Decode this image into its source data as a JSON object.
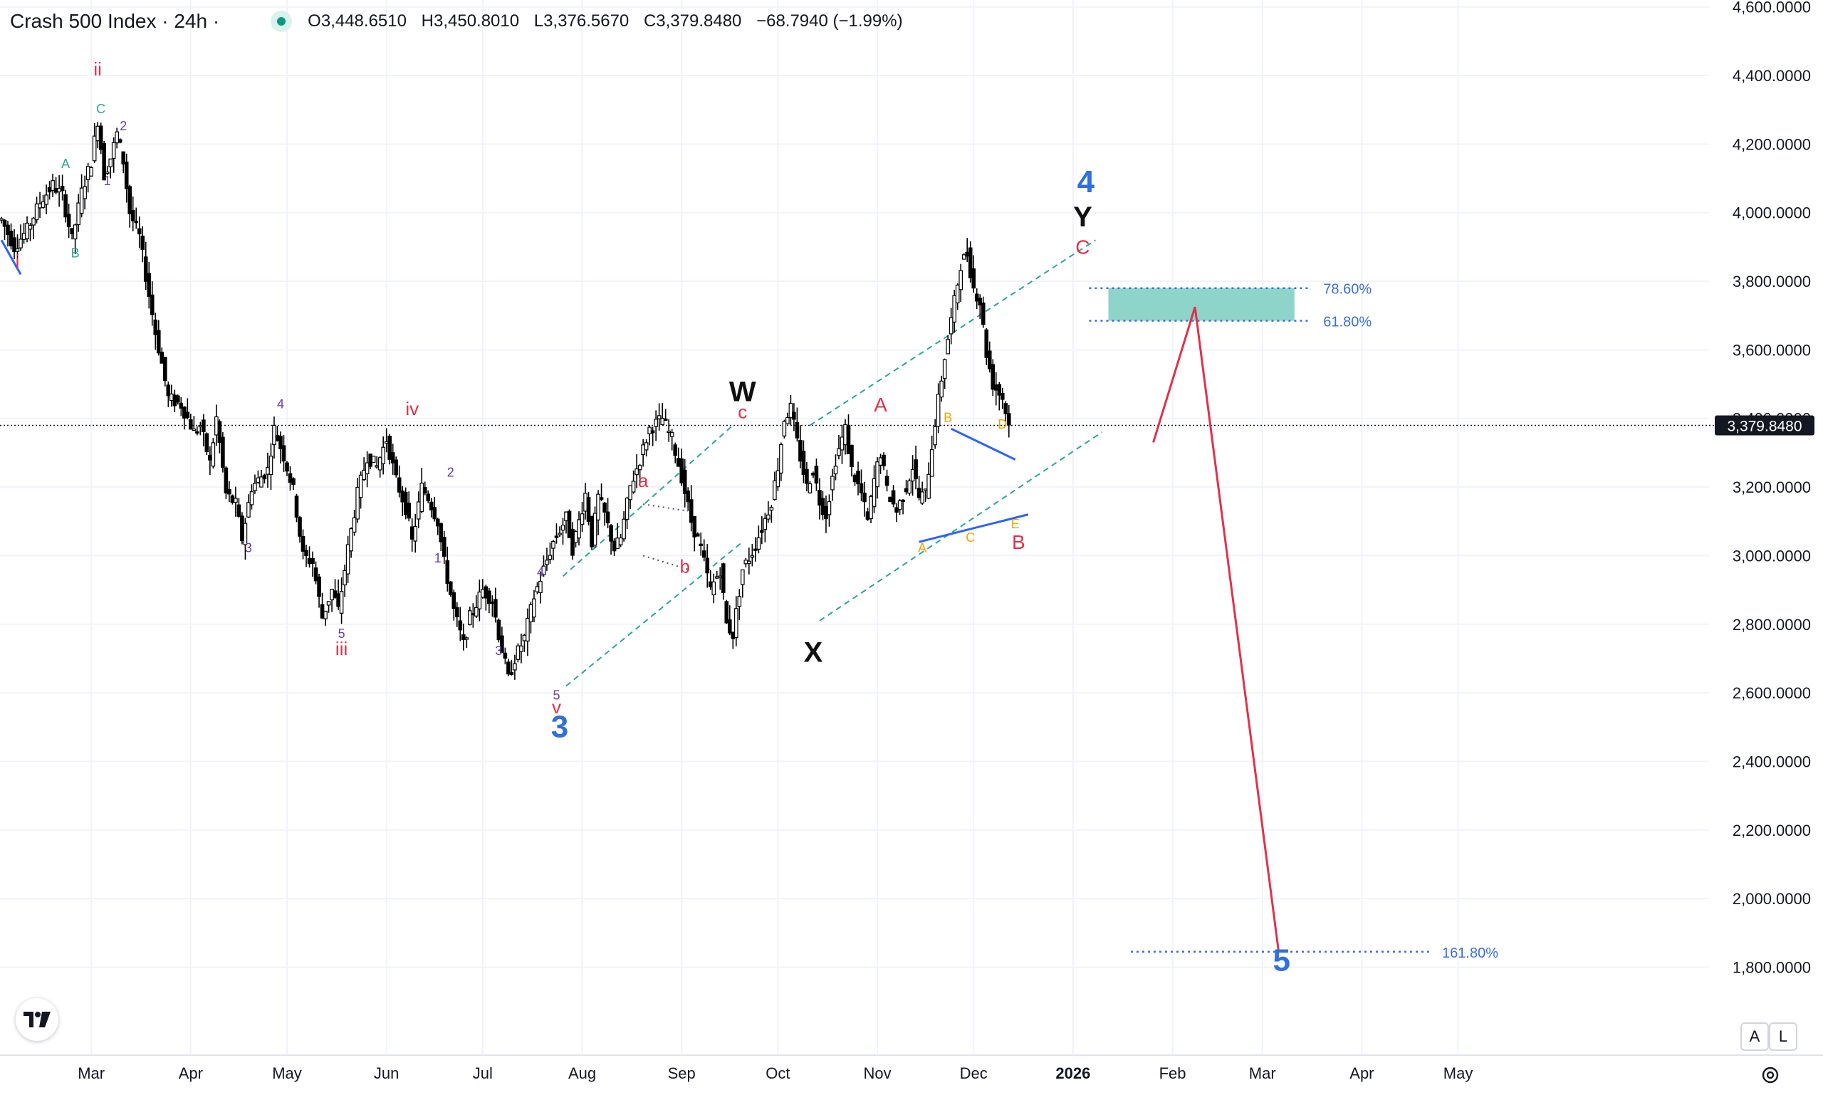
{
  "header": {
    "symbol": "Crash 500 Index · 24h ·",
    "open_label": "O",
    "open": "3,448.6510",
    "high_label": "H",
    "high": "3,450.8010",
    "low_label": "L",
    "low": "3,376.5670",
    "close_label": "C",
    "close": "3,379.8480",
    "change": "−68.7940 (−1.99%)"
  },
  "colors": {
    "candle": "#000000",
    "grid": "#f0f3fa",
    "blue": "#2962ff",
    "wave_blue": "#2f6fe0",
    "red": "#e0314b",
    "teal_channel": "#26a69a",
    "fib": "#3b6fd8",
    "zone": "#8fd4c8",
    "purple": "#6a3cb5",
    "green": "#2aa58f",
    "orange": "#f0a500",
    "price_tag": "#131722"
  },
  "buttons": {
    "auto": "A",
    "log": "L"
  },
  "icons": {
    "logo": "tradingview-logo-icon",
    "settings": "gear-icon"
  },
  "chart_data": {
    "type": "candlestick",
    "title": "Crash 500 Index · 24h",
    "ylim": [
      1650,
      4600
    ],
    "xlim": [
      0,
      530
    ],
    "x_unit": "days since Feb 1, 2025",
    "y_ticks": [
      "4,600.0000",
      "4,400.0000",
      "4,200.0000",
      "4,000.0000",
      "3,800.0000",
      "3,600.0000",
      "3,400.0000",
      "3,200.0000",
      "3,000.0000",
      "2,800.0000",
      "2,600.0000",
      "2,400.0000",
      "2,200.0000",
      "2,000.0000",
      "1,800.0000"
    ],
    "y_tick_values": [
      4600,
      4400,
      4200,
      4000,
      3800,
      3600,
      3400,
      3200,
      3000,
      2800,
      2600,
      2400,
      2200,
      2000,
      1800
    ],
    "x_ticks": [
      "Mar",
      "Apr",
      "May",
      "Jun",
      "Jul",
      "Aug",
      "Sep",
      "Oct",
      "Nov",
      "Dec",
      "2026",
      "Feb",
      "Mar",
      "Apr",
      "May"
    ],
    "x_tick_values": [
      28,
      59,
      89,
      120,
      150,
      181,
      212,
      242,
      273,
      303,
      334,
      365,
      393,
      424,
      454
    ],
    "last_price_label": "3,379.8480",
    "last_price": 3379.848,
    "price_path": [
      [
        0,
        3980
      ],
      [
        4,
        3900
      ],
      [
        8,
        3950
      ],
      [
        12,
        4030
      ],
      [
        16,
        4080
      ],
      [
        19,
        4050
      ],
      [
        22,
        3920
      ],
      [
        25,
        4060
      ],
      [
        28,
        4150
      ],
      [
        30,
        4270
      ],
      [
        32,
        4110
      ],
      [
        34,
        4160
      ],
      [
        36,
        4230
      ],
      [
        38,
        4150
      ],
      [
        40,
        4000
      ],
      [
        43,
        3930
      ],
      [
        46,
        3760
      ],
      [
        48,
        3650
      ],
      [
        50,
        3560
      ],
      [
        52,
        3460
      ],
      [
        56,
        3440
      ],
      [
        60,
        3360
      ],
      [
        62,
        3380
      ],
      [
        65,
        3270
      ],
      [
        67,
        3400
      ],
      [
        70,
        3180
      ],
      [
        73,
        3150
      ],
      [
        75,
        3050
      ],
      [
        78,
        3200
      ],
      [
        81,
        3230
      ],
      [
        83,
        3250
      ],
      [
        85,
        3370
      ],
      [
        88,
        3290
      ],
      [
        91,
        3190
      ],
      [
        94,
        3000
      ],
      [
        97,
        2980
      ],
      [
        100,
        2820
      ],
      [
        103,
        2900
      ],
      [
        105,
        2840
      ],
      [
        108,
        3020
      ],
      [
        111,
        3180
      ],
      [
        114,
        3290
      ],
      [
        117,
        3260
      ],
      [
        120,
        3340
      ],
      [
        123,
        3220
      ],
      [
        126,
        3140
      ],
      [
        128,
        3040
      ],
      [
        131,
        3200
      ],
      [
        133,
        3170
      ],
      [
        136,
        3100
      ],
      [
        138,
        2980
      ],
      [
        141,
        2840
      ],
      [
        144,
        2740
      ],
      [
        146,
        2820
      ],
      [
        150,
        2900
      ],
      [
        153,
        2870
      ],
      [
        155,
        2770
      ],
      [
        158,
        2640
      ],
      [
        160,
        2700
      ],
      [
        163,
        2760
      ],
      [
        166,
        2880
      ],
      [
        169,
        2960
      ],
      [
        172,
        3040
      ],
      [
        176,
        3110
      ],
      [
        178,
        3020
      ],
      [
        182,
        3180
      ],
      [
        184,
        3040
      ],
      [
        186,
        3170
      ],
      [
        188,
        3120
      ],
      [
        191,
        3020
      ],
      [
        193,
        3050
      ],
      [
        196,
        3200
      ],
      [
        199,
        3280
      ],
      [
        202,
        3370
      ],
      [
        206,
        3400
      ],
      [
        209,
        3340
      ],
      [
        212,
        3230
      ],
      [
        215,
        3100
      ],
      [
        218,
        3020
      ],
      [
        221,
        2900
      ],
      [
        224,
        2960
      ],
      [
        226,
        2800
      ],
      [
        228,
        2770
      ],
      [
        231,
        2960
      ],
      [
        234,
        3010
      ],
      [
        237,
        3080
      ],
      [
        240,
        3160
      ],
      [
        242,
        3260
      ],
      [
        244,
        3400
      ],
      [
        246,
        3430
      ],
      [
        248,
        3330
      ],
      [
        251,
        3200
      ],
      [
        253,
        3250
      ],
      [
        255,
        3160
      ],
      [
        257,
        3120
      ],
      [
        260,
        3280
      ],
      [
        263,
        3370
      ],
      [
        265,
        3250
      ],
      [
        268,
        3180
      ],
      [
        270,
        3100
      ],
      [
        272,
        3220
      ],
      [
        274,
        3300
      ],
      [
        276,
        3190
      ],
      [
        279,
        3130
      ],
      [
        282,
        3200
      ],
      [
        284,
        3260
      ],
      [
        286,
        3170
      ],
      [
        288,
        3180
      ],
      [
        291,
        3390
      ],
      [
        294,
        3580
      ],
      [
        297,
        3740
      ],
      [
        299,
        3850
      ],
      [
        301,
        3880
      ],
      [
        303,
        3780
      ],
      [
        305,
        3740
      ],
      [
        307,
        3590
      ],
      [
        309,
        3500
      ],
      [
        312,
        3460
      ],
      [
        314,
        3380
      ]
    ],
    "wave_labels": [
      {
        "text": "ii",
        "x": 30,
        "y": 4400,
        "color": "red"
      },
      {
        "text": "C",
        "x": 31,
        "y": 4290,
        "color": "green"
      },
      {
        "text": "2",
        "x": 38,
        "y": 4240,
        "color": "purple"
      },
      {
        "text": "1",
        "x": 33,
        "y": 4080,
        "color": "purple"
      },
      {
        "text": "A",
        "x": 20,
        "y": 4130,
        "color": "green"
      },
      {
        "text": "B",
        "x": 23,
        "y": 3870,
        "color": "green"
      },
      {
        "text": "i",
        "x": 5,
        "y": 3840,
        "color": "red"
      },
      {
        "text": "4",
        "x": 87,
        "y": 3430,
        "color": "purple"
      },
      {
        "text": "3",
        "x": 77,
        "y": 3010,
        "color": "purple"
      },
      {
        "text": "iv",
        "x": 128,
        "y": 3410,
        "color": "red"
      },
      {
        "text": "2",
        "x": 140,
        "y": 3230,
        "color": "purple"
      },
      {
        "text": "1",
        "x": 136,
        "y": 2980,
        "color": "purple"
      },
      {
        "text": "5",
        "x": 106,
        "y": 2760,
        "color": "purple"
      },
      {
        "text": "iii",
        "x": 106,
        "y": 2710,
        "color": "red"
      },
      {
        "text": "3",
        "x": 155,
        "y": 2710,
        "color": "purple"
      },
      {
        "text": "4",
        "x": 168,
        "y": 2940,
        "color": "purple"
      },
      {
        "text": "5",
        "x": 173,
        "y": 2580,
        "color": "purple"
      },
      {
        "text": "v",
        "x": 173,
        "y": 2540,
        "color": "red"
      },
      {
        "text": "3",
        "x": 174,
        "y": 2470,
        "color": "wave_blue"
      },
      {
        "text": "a",
        "x": 200,
        "y": 3200,
        "color": "red"
      },
      {
        "text": "b",
        "x": 213,
        "y": 2950,
        "color": "red"
      },
      {
        "text": "W",
        "x": 231,
        "y": 3450,
        "color": "black"
      },
      {
        "text": "c",
        "x": 231,
        "y": 3400,
        "color": "red"
      },
      {
        "text": "X",
        "x": 253,
        "y": 2690,
        "color": "black"
      },
      {
        "text": "A",
        "x": 274,
        "y": 3420,
        "color": "red"
      },
      {
        "text": "B",
        "x": 295,
        "y": 3390,
        "color": "orange"
      },
      {
        "text": "D",
        "x": 312,
        "y": 3370,
        "color": "orange"
      },
      {
        "text": "A",
        "x": 287,
        "y": 3010,
        "color": "orange"
      },
      {
        "text": "C",
        "x": 302,
        "y": 3040,
        "color": "orange"
      },
      {
        "text": "E",
        "x": 316,
        "y": 3080,
        "color": "orange"
      },
      {
        "text": "B",
        "x": 317,
        "y": 3020,
        "color": "red"
      },
      {
        "text": "4",
        "x": 338,
        "y": 4060,
        "color": "wave_blue"
      },
      {
        "text": "Y",
        "x": 337,
        "y": 3960,
        "color": "black"
      },
      {
        "text": "C",
        "x": 337,
        "y": 3880,
        "color": "red"
      },
      {
        "text": "5",
        "x": 399,
        "y": 1790,
        "color": "wave_blue"
      }
    ],
    "fib_levels": [
      {
        "label": "78.60%",
        "price": 3780
      },
      {
        "label": "61.80%",
        "price": 3685
      },
      {
        "label": "161.80%",
        "price": 1845
      }
    ],
    "target_zone": {
      "x_start": 345,
      "x_end": 403,
      "price_top": 3780,
      "price_bottom": 3685
    },
    "projection": [
      [
        359,
        3330
      ],
      [
        372,
        3725
      ],
      [
        398,
        1850
      ]
    ]
  }
}
